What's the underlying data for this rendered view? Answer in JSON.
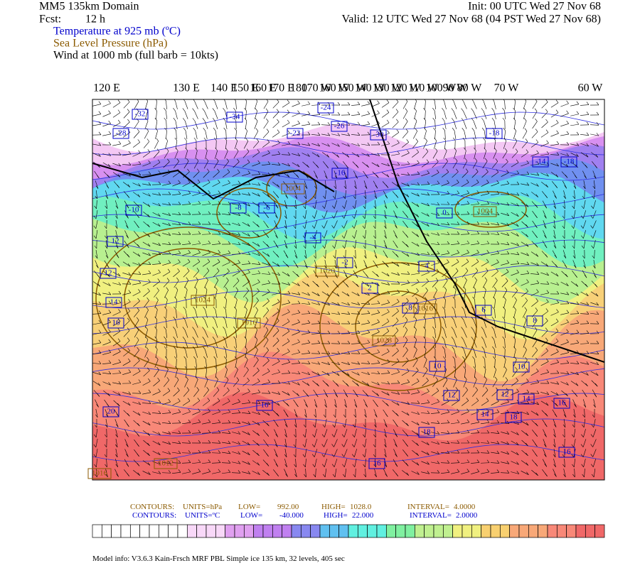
{
  "header": {
    "title": "MM5 135km Domain",
    "init": "Init: 00 UTC Wed 27 Nov 68",
    "fcst_label": "Fcst:",
    "fcst": "12 h",
    "valid": "Valid: 12 UTC Wed 27 Nov 68 (04 PST Wed 27 Nov 68)"
  },
  "fields": [
    {
      "label": "Temperature at 925 mb (ºC)",
      "color": "#0000cc"
    },
    {
      "label": "Sea Level Pressure (hPa)",
      "color": "#8b5a00"
    },
    {
      "label": "Wind at 1000 mb (full barb = 10kts)",
      "color": "#000000"
    }
  ],
  "longitudes": [
    "120 E",
    "130 E",
    "140 E",
    "150 E",
    "160 E",
    "170 E",
    "180",
    "170 W",
    "160 W",
    "150 W",
    "140 W",
    "130 W",
    "120 W",
    "110 W",
    "100 W",
    "90 W",
    "80 W",
    "70 W",
    "60 W"
  ],
  "temperature_labels": [
    "-32",
    "-28",
    "-34",
    "-22",
    "-24",
    "-26",
    "-30",
    "-18",
    "-16",
    "-10",
    "-8",
    "-6",
    "-4",
    "-2",
    "0",
    "2",
    "4",
    "6",
    "8",
    "10",
    "12",
    "14",
    "16",
    "18",
    "20",
    "16",
    "16",
    "12",
    "12",
    "14",
    "16",
    "14",
    "16",
    "18",
    "10",
    "12",
    "-18",
    "-14",
    "8"
  ],
  "pressure_labels": [
    "1004",
    "1024",
    "1016",
    "1028",
    "1020",
    "1016",
    "1004",
    "1012",
    "1016"
  ],
  "contours": [
    {
      "prefix": "CONTOURS:",
      "units": "UNITS=hPa",
      "low_label": "LOW=",
      "low": "992.00",
      "high_label": "HIGH=",
      "high": "1028.0",
      "interval_label": "INTERVAL=",
      "interval": "4.0000",
      "color": "#8b5a00"
    },
    {
      "prefix": "CONTOURS:",
      "units": "UNITS=ºC",
      "low_label": "LOW=",
      "low": "-40.000",
      "high_label": "HIGH=",
      "high": "22.000",
      "interval_label": "INTERVAL=",
      "interval": "2.0000",
      "color": "#0000cc"
    }
  ],
  "footer": "Model info: V3.6.3 Kain-Frsch MRF PBL     Simple ice  135 km,  32 levels,  405 sec"
}
